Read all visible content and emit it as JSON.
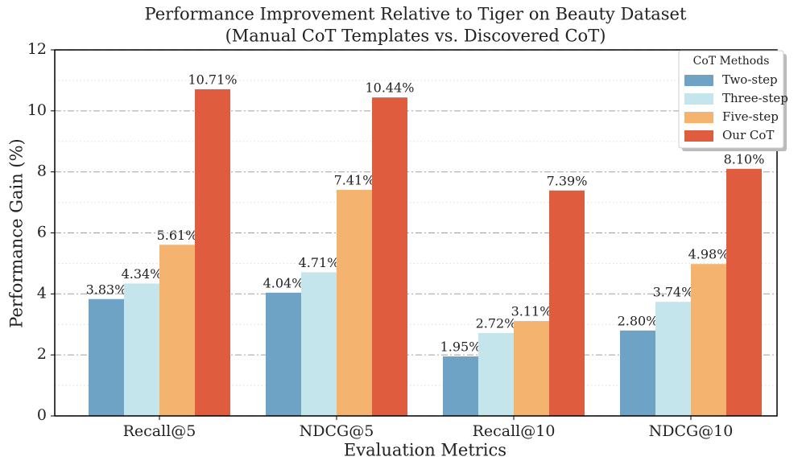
{
  "chart_data": {
    "type": "bar",
    "title": "Performance Improvement Relative to Tiger on Beauty Dataset",
    "subtitle": "(Manual CoT Templates vs. Discovered CoT)",
    "xlabel": "Evaluation Metrics",
    "ylabel": "Performance Gain (%)",
    "categories": [
      "Recall@5",
      "NDCG@5",
      "Recall@10",
      "NDCG@10"
    ],
    "series": [
      {
        "name": "Two-step",
        "color": "#6fa3c6",
        "values": [
          3.83,
          4.04,
          1.95,
          2.8
        ],
        "value_labels": [
          "3.83%",
          "4.04%",
          "1.95%",
          "2.80%"
        ]
      },
      {
        "name": "Three-step",
        "color": "#c5e5ec",
        "values": [
          4.34,
          4.71,
          2.72,
          3.74
        ],
        "value_labels": [
          "4.34%",
          "4.71%",
          "2.72%",
          "3.74%"
        ]
      },
      {
        "name": "Five-step",
        "color": "#f4b36e",
        "values": [
          5.61,
          7.41,
          3.11,
          4.98
        ],
        "value_labels": [
          "5.61%",
          "7.41%",
          "3.11%",
          "4.98%"
        ]
      },
      {
        "name": "Our CoT",
        "color": "#e05c3e",
        "values": [
          10.71,
          10.44,
          7.39,
          8.1
        ],
        "value_labels": [
          "10.71%",
          "10.44%",
          "7.39%",
          "8.10%"
        ]
      }
    ],
    "legend_title": "CoT Methods",
    "legend": "upper right",
    "ylim": [
      0,
      12
    ],
    "yticks": [
      0,
      2,
      4,
      6,
      8,
      10,
      12
    ],
    "minor_yticks": [
      1,
      3,
      5,
      7,
      9,
      11
    ],
    "grid": true
  }
}
